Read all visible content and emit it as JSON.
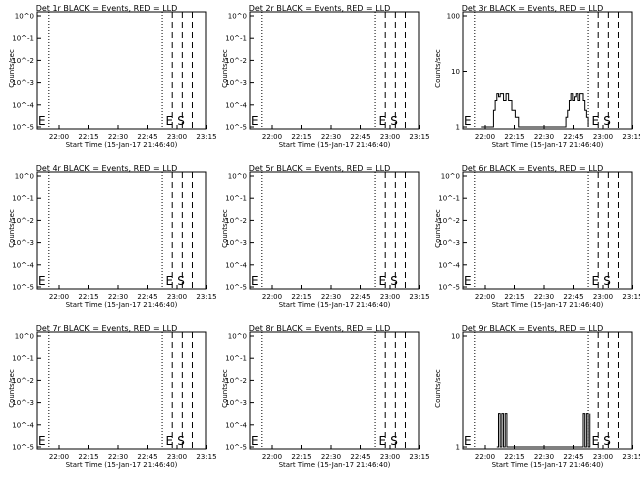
{
  "chart_data": [
    {
      "type": "line",
      "title": "Det 1r BLACK = Events, RED = LLD",
      "ylabel": "Counts/sec",
      "xlabel": "Start Time (15-Jan-17 21:46:40)",
      "x_tick_labels": [
        "22:00",
        "22:15",
        "22:30",
        "22:45",
        "23:00",
        "23:15"
      ],
      "y_scale": "log",
      "y_tick_labels": [
        "10^0",
        "10^-1",
        "10^-2",
        "10^-3",
        "10^-4",
        "10^-5"
      ],
      "ylim": [
        1e-05,
        1
      ],
      "markers": [
        "E",
        "S"
      ],
      "series": [
        {
          "values": []
        }
      ]
    },
    {
      "type": "line",
      "title": "Det 2r BLACK = Events, RED = LLD",
      "ylabel": "Counts/sec",
      "xlabel": "Start Time (15-Jan-17 21:46:40)",
      "x_tick_labels": [
        "22:00",
        "22:15",
        "22:30",
        "22:45",
        "23:00",
        "23:15"
      ],
      "y_scale": "log",
      "y_tick_labels": [
        "10^0",
        "10^-1",
        "10^-2",
        "10^-3",
        "10^-4",
        "10^-5"
      ],
      "ylim": [
        1e-05,
        1
      ],
      "markers": [
        "E",
        "S"
      ],
      "series": [
        {
          "values": []
        }
      ]
    },
    {
      "type": "line",
      "title": "Det 3r BLACK = Events, RED = LLD",
      "ylabel": "Counts/sec",
      "xlabel": "Start Time (15-Jan-17 21:46:40)",
      "x_tick_labels": [
        "22:00",
        "22:15",
        "22:30",
        "22:45",
        "23:00",
        "23:15"
      ],
      "y_scale": "log",
      "y_tick_labels": [
        "100",
        "10",
        "1"
      ],
      "ylim": [
        1,
        100
      ],
      "markers": [
        "E",
        "S"
      ],
      "series": [
        {
          "x": [
            0.108,
            0.125,
            0.16,
            0.18,
            0.19,
            0.2,
            0.21,
            0.22,
            0.23,
            0.24,
            0.255,
            0.27,
            0.29,
            0.31,
            0.33,
            0.35,
            0.37,
            0.4,
            0.5,
            0.6,
            0.61,
            0.62,
            0.63,
            0.64,
            0.65,
            0.66,
            0.67,
            0.68,
            0.69,
            0.7,
            0.71,
            0.72,
            0.73,
            0.74
          ],
          "values": [
            1,
            1,
            1,
            2,
            3,
            4,
            3.5,
            4,
            4,
            3,
            4,
            3,
            2,
            1.5,
            1,
            1,
            1,
            1,
            1,
            1,
            1.5,
            2,
            3,
            4,
            3,
            3.5,
            4,
            3,
            4,
            4,
            3,
            2,
            1.5,
            1
          ]
        }
      ]
    },
    {
      "type": "line",
      "title": "Det 4r BLACK = Events, RED = LLD",
      "ylabel": "Counts/sec",
      "xlabel": "Start Time (15-Jan-17 21:46:40)",
      "x_tick_labels": [
        "22:00",
        "22:15",
        "22:30",
        "22:45",
        "23:00",
        "23:15"
      ],
      "y_scale": "log",
      "y_tick_labels": [
        "10^0",
        "10^-1",
        "10^-2",
        "10^-3",
        "10^-4",
        "10^-5"
      ],
      "ylim": [
        1e-05,
        1
      ],
      "markers": [
        "E",
        "S"
      ],
      "series": [
        {
          "values": []
        }
      ]
    },
    {
      "type": "line",
      "title": "Det 5r BLACK = Events, RED = LLD",
      "ylabel": "Counts/sec",
      "xlabel": "Start Time (15-Jan-17 21:46:40)",
      "x_tick_labels": [
        "22:00",
        "22:15",
        "22:30",
        "22:45",
        "23:00",
        "23:15"
      ],
      "y_scale": "log",
      "y_tick_labels": [
        "10^0",
        "10^-1",
        "10^-2",
        "10^-3",
        "10^-4",
        "10^-5"
      ],
      "ylim": [
        1e-05,
        1
      ],
      "markers": [
        "E",
        "S"
      ],
      "series": [
        {
          "values": []
        }
      ]
    },
    {
      "type": "line",
      "title": "Det 6r BLACK = Events, RED = LLD",
      "ylabel": "Counts/sec",
      "xlabel": "Start Time (15-Jan-17 21:46:40)",
      "x_tick_labels": [
        "22:00",
        "22:15",
        "22:30",
        "22:45",
        "23:00",
        "23:15"
      ],
      "y_scale": "log",
      "y_tick_labels": [
        "10^0",
        "10^-1",
        "10^-2",
        "10^-3",
        "10^-4",
        "10^-5"
      ],
      "ylim": [
        1e-05,
        1
      ],
      "markers": [
        "E",
        "S"
      ],
      "series": [
        {
          "values": []
        }
      ]
    },
    {
      "type": "line",
      "title": "Det 7r BLACK = Events, RED = LLD",
      "ylabel": "Counts/sec",
      "xlabel": "Start Time (15-Jan-17 21:46:40)",
      "x_tick_labels": [
        "22:00",
        "22:15",
        "22:30",
        "22:45",
        "23:00",
        "23:15"
      ],
      "y_scale": "log",
      "y_tick_labels": [
        "10^0",
        "10^-1",
        "10^-2",
        "10^-3",
        "10^-4",
        "10^-5"
      ],
      "ylim": [
        1e-05,
        1
      ],
      "markers": [
        "E",
        "S"
      ],
      "series": [
        {
          "values": []
        }
      ]
    },
    {
      "type": "line",
      "title": "Det 8r BLACK = Events, RED = LLD",
      "ylabel": "Counts/sec",
      "xlabel": "Start Time (15-Jan-17 21:46:40)",
      "x_tick_labels": [
        "22:00",
        "22:15",
        "22:30",
        "22:45",
        "23:00",
        "23:15"
      ],
      "y_scale": "log",
      "y_tick_labels": [
        "10^0",
        "10^-1",
        "10^-2",
        "10^-3",
        "10^-4",
        "10^-5"
      ],
      "ylim": [
        1e-05,
        1
      ],
      "markers": [
        "E",
        "S"
      ],
      "series": [
        {
          "values": []
        }
      ]
    },
    {
      "type": "line",
      "title": "Det 9r BLACK = Events, RED = LLD",
      "ylabel": "Counts/sec",
      "xlabel": "Start Time (15-Jan-17 21:46:40)",
      "x_tick_labels": [
        "22:00",
        "22:15",
        "22:30",
        "22:45",
        "23:00",
        "23:15"
      ],
      "y_scale": "log",
      "y_tick_labels": [
        "10",
        "1"
      ],
      "ylim": [
        1,
        10
      ],
      "markers": [
        "E",
        "S"
      ],
      "series": [
        {
          "x": [
            0.2,
            0.21,
            0.22,
            0.23,
            0.24,
            0.25,
            0.26,
            0.7,
            0.71,
            0.72,
            0.73,
            0.74,
            0.75
          ],
          "values": [
            1,
            2,
            1,
            2,
            1,
            2,
            1,
            1,
            2,
            1,
            2,
            1,
            2
          ]
        }
      ]
    }
  ]
}
